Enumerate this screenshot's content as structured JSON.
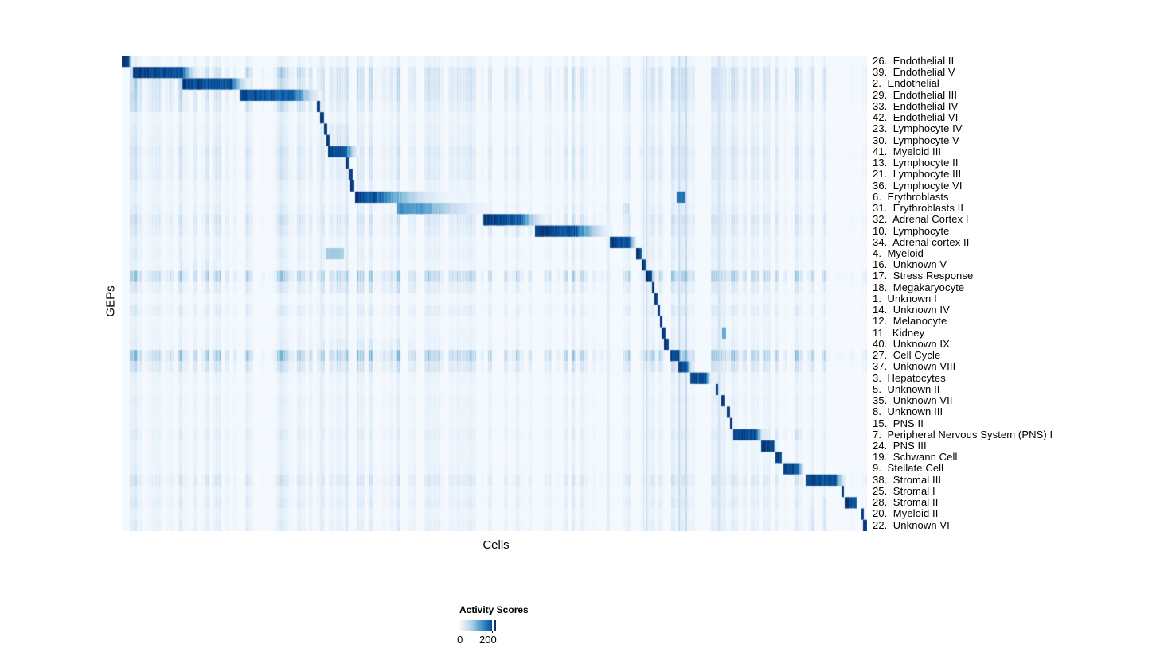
{
  "chart_data": {
    "type": "heatmap",
    "xlabel": "Cells",
    "ylabel": "GEPs",
    "colormap": [
      "#f7fbff",
      "#deebf7",
      "#c6dbef",
      "#9ecae1",
      "#6baed6",
      "#4292c6",
      "#2171b5",
      "#08519c",
      "#08306b"
    ],
    "colorbar": {
      "title": "Activity Scores",
      "min_label": "0",
      "max_label": "200",
      "ticks": [
        0,
        200
      ],
      "tick_frac": 0.89,
      "max_label_frac": 0.78
    },
    "rows": [
      {
        "label": "26.  Endothelial II",
        "bg": 0.12,
        "block": [
          0.0,
          0.0085,
          0.013,
          1.0
        ]
      },
      {
        "label": "39.  Endothelial V",
        "bg": 0.3,
        "block": [
          0.015,
          0.079,
          0.105,
          0.96
        ],
        "bands": [
          [
            0.158,
            0.262,
            0.4
          ],
          [
            0.915,
            1.0,
            0.22
          ]
        ]
      },
      {
        "label": "2.  Endothelial",
        "bg": 0.3,
        "block": [
          0.081,
          0.145,
          0.172,
          0.93
        ],
        "bands": [
          [
            0.015,
            0.079,
            0.38
          ],
          [
            0.915,
            1.0,
            0.2
          ]
        ]
      },
      {
        "label": "29.  Endothelial III",
        "bg": 0.28,
        "block": [
          0.158,
          0.231,
          0.268,
          0.9
        ],
        "bands": [
          [
            0.0,
            0.082,
            0.34
          ]
        ]
      },
      {
        "label": "33.  Endothelial IV",
        "bg": 0.2,
        "block": [
          0.2618,
          0.2665,
          0.2665,
          1.0
        ],
        "bands": [
          [
            0.0,
            0.105,
            0.3
          ],
          [
            0.158,
            0.26,
            0.3
          ]
        ]
      },
      {
        "label": "42.  Endothelial VI",
        "bg": 0.12,
        "block": [
          0.2655,
          0.271,
          0.271,
          1.0
        ]
      },
      {
        "label": "23.  Lymphocyte IV",
        "bg": 0.15,
        "block": [
          0.2712,
          0.2758,
          0.2758,
          1.0
        ],
        "bands": [
          [
            0.277,
            0.31,
            0.25
          ]
        ]
      },
      {
        "label": "30.  Lymphocyte V",
        "bg": 0.17,
        "block": [
          0.2745,
          0.279,
          0.279,
          1.0
        ],
        "bands": [
          [
            0.281,
            0.312,
            0.3
          ]
        ]
      },
      {
        "label": "41.  Myeloid III",
        "bg": 0.24,
        "block": [
          0.277,
          0.2995,
          0.318,
          0.95
        ],
        "bands": [
          [
            0.688,
            0.698,
            0.5
          ]
        ]
      },
      {
        "label": "13.  Lymphocyte II",
        "bg": 0.2,
        "block": [
          0.3002,
          0.3043,
          0.3043,
          1.0
        ]
      },
      {
        "label": "21.  Lymphocyte III",
        "bg": 0.22,
        "block": [
          0.3046,
          0.3096,
          0.3096,
          1.0
        ]
      },
      {
        "label": "36.  Lymphocyte VI",
        "bg": 0.14,
        "block": [
          0.3052,
          0.312,
          0.312,
          1.0
        ]
      },
      {
        "label": "6.  Erythroblasts",
        "bg": 0.11,
        "block": [
          0.313,
          0.3344,
          0.44,
          0.96
        ],
        "spots": [
          [
            0.7447,
            0.7564,
            0.7564,
            0.78
          ]
        ]
      },
      {
        "label": "31.  Erythroblasts II",
        "bg": 0.16,
        "block": [
          0.3697,
          0.4017,
          0.4947,
          0.62
        ],
        "bands": [
          [
            0.648,
            0.68,
            0.45
          ]
        ]
      },
      {
        "label": "32.  Adrenal Cortex I",
        "bg": 0.27,
        "block": [
          0.485,
          0.531,
          0.572,
          0.95
        ],
        "bands": [
          [
            0.572,
            0.662,
            0.3
          ]
        ]
      },
      {
        "label": "10.  Lymphocyte",
        "bg": 0.2,
        "block": [
          0.5545,
          0.6058,
          0.659,
          0.96
        ],
        "bands": [
          [
            0.478,
            0.553,
            0.3
          ]
        ]
      },
      {
        "label": "34.  Adrenal cortex II",
        "bg": 0.12,
        "block": [
          0.655,
          0.6806,
          0.6912,
          0.96
        ]
      },
      {
        "label": "4.  Myeloid",
        "bg": 0.15,
        "block": [
          0.69,
          0.6975,
          0.6975,
          1.0
        ],
        "spots": [
          [
            0.2735,
            0.298,
            0.298,
            0.38
          ]
        ]
      },
      {
        "label": "16.  Unknown V",
        "bg": 0.11,
        "block": [
          0.6976,
          0.7029,
          0.7029,
          1.0
        ],
        "bands": [
          [
            0.078,
            0.124,
            0.22
          ]
        ]
      },
      {
        "label": "17.  Stress Response",
        "bg": 0.45,
        "block": [
          0.703,
          0.7115,
          0.7115,
          1.0
        ]
      },
      {
        "label": "18.  Megakaryocyte",
        "bg": 0.2,
        "block": [
          0.7116,
          0.715,
          0.715,
          1.0
        ],
        "bands": [
          [
            0.265,
            0.405,
            0.28
          ]
        ]
      },
      {
        "label": "1.  Unknown I",
        "bg": 0.09,
        "block": [
          0.715,
          0.719,
          0.719,
          1.0
        ]
      },
      {
        "label": "14.  Unknown IV",
        "bg": 0.18,
        "block": [
          0.719,
          0.7223,
          0.7223,
          1.0
        ]
      },
      {
        "label": "12.  Melanocyte",
        "bg": 0.09,
        "block": [
          0.7223,
          0.7256,
          0.7256,
          1.0
        ]
      },
      {
        "label": "11.  Kidney",
        "bg": 0.11,
        "block": [
          0.7247,
          0.73,
          0.73,
          1.0
        ],
        "spots": [
          [
            0.8055,
            0.811,
            0.811,
            0.55
          ]
        ]
      },
      {
        "label": "40.  Unknown IX",
        "bg": 0.13,
        "block": [
          0.7278,
          0.734,
          0.734,
          1.0
        ],
        "bands": [
          [
            0.26,
            0.39,
            0.2
          ]
        ]
      },
      {
        "label": "27.  Cell Cycle",
        "bg": 0.5,
        "block": [
          0.7362,
          0.7468,
          0.752,
          0.95
        ]
      },
      {
        "label": "37.  Unknown VIII",
        "bg": 0.28,
        "block": [
          0.7468,
          0.7575,
          0.767,
          0.95
        ]
      },
      {
        "label": "3.  Hepatocytes",
        "bg": 0.11,
        "block": [
          0.7628,
          0.7831,
          0.792,
          0.93
        ]
      },
      {
        "label": "5.  Unknown II",
        "bg": 0.09,
        "block": [
          0.797,
          0.8003,
          0.8003,
          1.0
        ]
      },
      {
        "label": "35.  Unknown VII",
        "bg": 0.13,
        "block": [
          0.8045,
          0.8088,
          0.8088,
          1.0
        ]
      },
      {
        "label": "8.  Unknown III",
        "bg": 0.11,
        "block": [
          0.812,
          0.8163,
          0.8163,
          1.0
        ]
      },
      {
        "label": "15.  PNS II",
        "bg": 0.1,
        "block": [
          0.8163,
          0.8195,
          0.8195,
          1.0
        ]
      },
      {
        "label": "7.  Peripheral Nervous System (PNS) I",
        "bg": 0.16,
        "block": [
          0.8205,
          0.8504,
          0.862,
          0.96
        ],
        "bands": [
          [
            0.858,
            0.912,
            0.25
          ]
        ]
      },
      {
        "label": "24.  PNS III",
        "bg": 0.11,
        "block": [
          0.858,
          0.874,
          0.878,
          0.97
        ]
      },
      {
        "label": "19.  Schwann Cell",
        "bg": 0.11,
        "block": [
          0.8771,
          0.8857,
          0.8857,
          1.0
        ]
      },
      {
        "label": "9.  Stellate Cell",
        "bg": 0.13,
        "block": [
          0.8878,
          0.907,
          0.916,
          0.96
        ]
      },
      {
        "label": "38.  Stromal III",
        "bg": 0.24,
        "block": [
          0.9177,
          0.9573,
          0.972,
          0.93
        ],
        "bands": [
          [
            0.972,
            1.0,
            0.35
          ]
        ]
      },
      {
        "label": "25.  Stromal I",
        "bg": 0.13,
        "block": [
          0.9658,
          0.9692,
          0.9692,
          1.0
        ]
      },
      {
        "label": "28.  Stromal II",
        "bg": 0.18,
        "block": [
          0.9701,
          0.9861,
          0.9861,
          0.97
        ],
        "bands": [
          [
            0.93,
            0.968,
            0.28
          ]
        ]
      },
      {
        "label": "20.  Myeloid II",
        "bg": 0.11,
        "block": [
          0.9925,
          0.9958,
          0.9958,
          1.0
        ],
        "bands": [
          [
            0.92,
            0.99,
            0.24
          ]
        ]
      },
      {
        "label": "22.  Unknown VI",
        "bg": 0.15,
        "block": [
          0.9947,
          1.0,
          1.0,
          1.0
        ],
        "bands": [
          [
            0.92,
            0.993,
            0.28
          ]
        ]
      }
    ],
    "column_highlights": [
      [
        0.2655,
        0.0035,
        0.22
      ],
      [
        0.2995,
        0.003,
        0.18
      ],
      [
        0.6515,
        0.003,
        0.42
      ],
      [
        0.659,
        0.002,
        0.3
      ],
      [
        0.698,
        0.0025,
        0.38
      ],
      [
        0.7035,
        0.003,
        0.3
      ],
      [
        0.7465,
        0.0025,
        0.36
      ],
      [
        0.756,
        0.002,
        0.26
      ],
      [
        0.8,
        0.0025,
        0.32
      ],
      [
        0.8065,
        0.002,
        0.28
      ],
      [
        0.868,
        0.002,
        0.2
      ],
      [
        0.955,
        0.002,
        0.26
      ],
      [
        0.9675,
        0.002,
        0.3
      ]
    ]
  }
}
